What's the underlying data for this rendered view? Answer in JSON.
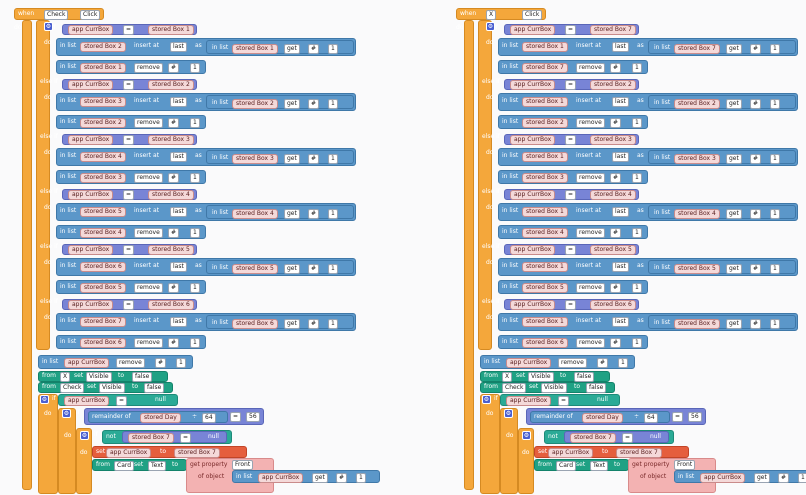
{
  "left": {
    "event": {
      "when": "when",
      "component": "Check",
      "event": "Click",
      "do": "do"
    },
    "ifs": [
      {
        "kw": "if",
        "curr": "app CurrBox",
        "eq": "=",
        "stored": "stored Box 1",
        "list1": "stored Box 2",
        "insert": "insert at",
        "last": "last",
        "as": "as",
        "inlist": "in list",
        "src": "stored Box 1",
        "get": "get",
        "hash": "#",
        "idx": "1",
        "remList": "stored Box 1",
        "remove": "remove"
      },
      {
        "kw": "else if",
        "curr": "app CurrBox",
        "eq": "=",
        "stored": "stored Box 2",
        "list1": "stored Box 3",
        "insert": "insert at",
        "last": "last",
        "as": "as",
        "inlist": "in list",
        "src": "stored Box 2",
        "get": "get",
        "hash": "#",
        "idx": "1",
        "remList": "stored Box 2",
        "remove": "remove"
      },
      {
        "kw": "else if",
        "curr": "app CurrBox",
        "eq": "=",
        "stored": "stored Box 3",
        "list1": "stored Box 4",
        "insert": "insert at",
        "last": "last",
        "as": "as",
        "inlist": "in list",
        "src": "stored Box 3",
        "get": "get",
        "hash": "#",
        "idx": "1",
        "remList": "stored Box 3",
        "remove": "remove"
      },
      {
        "kw": "else if",
        "curr": "app CurrBox",
        "eq": "=",
        "stored": "stored Box 4",
        "list1": "stored Box 5",
        "insert": "insert at",
        "last": "last",
        "as": "as",
        "inlist": "in list",
        "src": "stored Box 4",
        "get": "get",
        "hash": "#",
        "idx": "1",
        "remList": "stored Box 4",
        "remove": "remove"
      },
      {
        "kw": "else if",
        "curr": "app CurrBox",
        "eq": "=",
        "stored": "stored Box 5",
        "list1": "stored Box 6",
        "insert": "insert at",
        "last": "last",
        "as": "as",
        "inlist": "in list",
        "src": "stored Box 5",
        "get": "get",
        "hash": "#",
        "idx": "1",
        "remList": "stored Box 5",
        "remove": "remove"
      },
      {
        "kw": "else if",
        "curr": "app CurrBox",
        "eq": "=",
        "stored": "stored Box 6",
        "list1": "stored Box 7",
        "insert": "insert at",
        "last": "last",
        "as": "as",
        "inlist": "in list",
        "src": "stored Box 6",
        "get": "get",
        "hash": "#",
        "idx": "1",
        "remList": "stored Box 6",
        "remove": "remove"
      }
    ],
    "tail": {
      "inlist": "in list",
      "curr": "app CurrBox",
      "remove": "remove",
      "hash": "#",
      "idx": "1",
      "from1": "from",
      "comp1": "X",
      "set1": "set",
      "prop1": "Visible",
      "to1": "to",
      "val1": "false",
      "from2": "from",
      "comp2": "Check",
      "set2": "set",
      "prop2": "Visible",
      "to2": "to",
      "val2": "false",
      "if1": "if",
      "curr2": "app CurrBox",
      "eq2": "=",
      "null": "null",
      "do": "do",
      "if2": "if",
      "rem": "remainder of",
      "day": "stored Day",
      "div": "÷",
      "n64": "64",
      "eq3": "=",
      "n56": "56",
      "if3": "if",
      "not": "not",
      "b7": "stored Box 7",
      "eq4": "=",
      "null2": "null",
      "set3": "set",
      "curr3": "app CurrBox",
      "to3": "to",
      "b7b": "stored Box 7",
      "from3": "from",
      "card": "Card",
      "set4": "set",
      "text": "Text",
      "to4": "to",
      "getprop": "get property",
      "front": "Front",
      "ofobj": "of object",
      "inlist2": "in list",
      "curr4": "app CurrBox",
      "get": "get",
      "hash2": "#",
      "idx2": "1"
    }
  },
  "right": {
    "event": {
      "when": "when",
      "component": "X",
      "event": "Click",
      "do": "do"
    },
    "ifs": [
      {
        "kw": "if",
        "curr": "app CurrBox",
        "eq": "=",
        "stored": "stored Box 7",
        "list1": "stored Box 1",
        "insert": "insert at",
        "last": "last",
        "as": "as",
        "inlist": "in list",
        "src": "stored Box 7",
        "get": "get",
        "hash": "#",
        "idx": "1",
        "remList": "stored Box 7",
        "remove": "remove"
      },
      {
        "kw": "else if",
        "curr": "app CurrBox",
        "eq": "=",
        "stored": "stored Box 2",
        "list1": "stored Box 1",
        "insert": "insert at",
        "last": "last",
        "as": "as",
        "inlist": "in list",
        "src": "stored Box 2",
        "get": "get",
        "hash": "#",
        "idx": "1",
        "remList": "stored Box 2",
        "remove": "remove"
      },
      {
        "kw": "else if",
        "curr": "app CurrBox",
        "eq": "=",
        "stored": "stored Box 3",
        "list1": "stored Box 1",
        "insert": "insert at",
        "last": "last",
        "as": "as",
        "inlist": "in list",
        "src": "stored Box 3",
        "get": "get",
        "hash": "#",
        "idx": "1",
        "remList": "stored Box 3",
        "remove": "remove"
      },
      {
        "kw": "else if",
        "curr": "app CurrBox",
        "eq": "=",
        "stored": "stored Box 4",
        "list1": "stored Box 1",
        "insert": "insert at",
        "last": "last",
        "as": "as",
        "inlist": "in list",
        "src": "stored Box 4",
        "get": "get",
        "hash": "#",
        "idx": "1",
        "remList": "stored Box 4",
        "remove": "remove"
      },
      {
        "kw": "else if",
        "curr": "app CurrBox",
        "eq": "=",
        "stored": "stored Box 5",
        "list1": "stored Box 1",
        "insert": "insert at",
        "last": "last",
        "as": "as",
        "inlist": "in list",
        "src": "stored Box 5",
        "get": "get",
        "hash": "#",
        "idx": "1",
        "remList": "stored Box 5",
        "remove": "remove"
      },
      {
        "kw": "else if",
        "curr": "app CurrBox",
        "eq": "=",
        "stored": "stored Box 6",
        "list1": "stored Box 1",
        "insert": "insert at",
        "last": "last",
        "as": "as",
        "inlist": "in list",
        "src": "stored Box 6",
        "get": "get",
        "hash": "#",
        "idx": "1",
        "remList": "stored Box 6",
        "remove": "remove"
      }
    ],
    "tail": {
      "inlist": "in list",
      "curr": "app CurrBox",
      "remove": "remove",
      "hash": "#",
      "idx": "1",
      "from1": "from",
      "comp1": "X",
      "set1": "set",
      "prop1": "Visible",
      "to1": "to",
      "val1": "false",
      "from2": "from",
      "comp2": "Check",
      "set2": "set",
      "prop2": "Visible",
      "to2": "to",
      "val2": "false",
      "if1": "if",
      "curr2": "app CurrBox",
      "eq2": "=",
      "null": "null",
      "do": "do",
      "if2": "if",
      "rem": "remainder of",
      "day": "stored Day",
      "div": "÷",
      "n64": "64",
      "eq3": "=",
      "n56": "56",
      "if3": "if",
      "not": "not",
      "b7": "stored Box 7",
      "eq4": "=",
      "null2": "null",
      "set3": "set",
      "curr3": "app CurrBox",
      "to3": "to",
      "b7b": "stored Box 7",
      "from3": "from",
      "card": "Card",
      "set4": "set",
      "text": "Text",
      "to4": "to",
      "getprop": "get property",
      "front": "Front",
      "ofobj": "of object",
      "inlist2": "in list",
      "curr4": "app CurrBox",
      "get": "get",
      "hash2": "#",
      "idx2": "1"
    }
  }
}
